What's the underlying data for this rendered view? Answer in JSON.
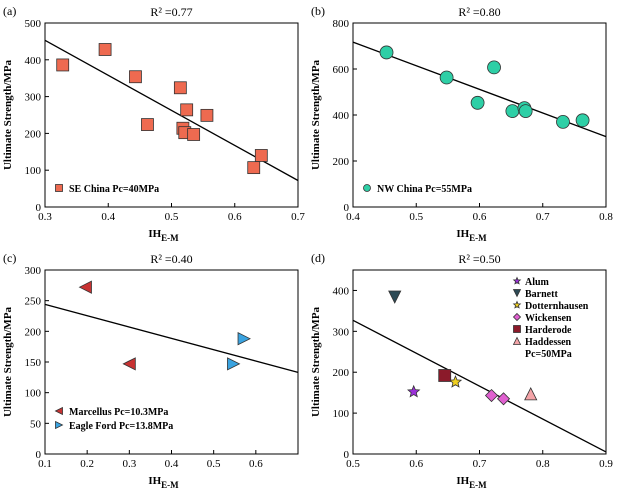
{
  "chart_data": [
    {
      "type": "scatter",
      "panel_label": "(a)",
      "annotation": "R² =0.77",
      "ylabel": "Ultimate Strength/MPa",
      "xlabel_main": "IH",
      "xlabel_sub": "E-M",
      "xlim": [
        0.3,
        0.7
      ],
      "ylim": [
        0,
        500
      ],
      "xticks": [
        "0.3",
        "0.4",
        "0.5",
        "0.6",
        "0.7"
      ],
      "yticks": [
        "0",
        "100",
        "200",
        "300",
        "400",
        "500"
      ],
      "legend_position": "bottom-left",
      "series": [
        {
          "name": "SE China Pc=40MPa",
          "marker": "square",
          "color": "#ee6a50",
          "x": [
            0.328,
            0.395,
            0.443,
            0.462,
            0.514,
            0.518,
            0.521,
            0.524,
            0.535,
            0.556,
            0.63,
            0.642
          ],
          "y": [
            386,
            428,
            354,
            224,
            324,
            214,
            202,
            264,
            197,
            249,
            107,
            140
          ]
        }
      ],
      "fit_line": {
        "x": [
          0.3,
          0.7
        ],
        "y": [
          453,
          72
        ]
      }
    },
    {
      "type": "scatter",
      "panel_label": "(b)",
      "annotation": "R² =0.80",
      "ylabel": "Ultimate Strength/MPa",
      "xlabel_main": "IH",
      "xlabel_sub": "E-M",
      "xlim": [
        0.4,
        0.8
      ],
      "ylim": [
        0,
        800
      ],
      "xticks": [
        "0.4",
        "0.5",
        "0.6",
        "0.7",
        "0.8"
      ],
      "yticks": [
        "0",
        "200",
        "400",
        "600",
        "800"
      ],
      "legend_position": "bottom-left",
      "series": [
        {
          "name": "NW China Pc=55MPa",
          "marker": "circle",
          "color": "#2ecfa6",
          "x": [
            0.453,
            0.548,
            0.597,
            0.623,
            0.652,
            0.671,
            0.673,
            0.732,
            0.763
          ],
          "y": [
            672,
            563,
            453,
            607,
            417,
            430,
            417,
            370,
            377
          ]
        }
      ],
      "fit_line": {
        "x": [
          0.4,
          0.8
        ],
        "y": [
          717,
          306
        ]
      }
    },
    {
      "type": "scatter",
      "panel_label": "(c)",
      "annotation": "R² =0.40",
      "ylabel": "Ultimate Strength/MPa",
      "xlabel_main": "IH",
      "xlabel_sub": "E-M",
      "xlim": [
        0.1,
        0.7
      ],
      "ylim": [
        0,
        300
      ],
      "xticks": [
        "0.1",
        "0.2",
        "0.3",
        "0.4",
        "0.5",
        "0.6"
      ],
      "yticks": [
        "0",
        "50",
        "100",
        "150",
        "200",
        "250",
        "300"
      ],
      "legend_position": "bottom-left",
      "series": [
        {
          "name": "Marcellus Pc=10.3MPa",
          "marker": "triangle-left",
          "color": "#c83232",
          "x": [
            0.196,
            0.3
          ],
          "y": [
            272,
            147
          ]
        },
        {
          "name": "Eagle Ford Pc=13.8MPa",
          "marker": "triangle-right",
          "color": "#3aa3e0",
          "x": [
            0.547,
            0.572
          ],
          "y": [
            147,
            188
          ]
        }
      ],
      "fit_line": {
        "x": [
          0.1,
          0.7
        ],
        "y": [
          244,
          133
        ]
      }
    },
    {
      "type": "scatter",
      "panel_label": "(d)",
      "annotation": "R² =0.50",
      "ylabel": "Ultimate Strength/MPa",
      "xlabel_main": "IH",
      "xlabel_sub": "E-M",
      "xlim": [
        0.5,
        0.9
      ],
      "ylim": [
        0,
        450
      ],
      "xticks": [
        "0.5",
        "0.6",
        "0.7",
        "0.8",
        "0.9"
      ],
      "yticks": [
        "0",
        "100",
        "200",
        "300",
        "400"
      ],
      "legend_position": "top-right",
      "legend_note": "Pc=50MPa",
      "series": [
        {
          "name": "Alum",
          "marker": "star",
          "color": "#9b30d9",
          "x": [
            0.596
          ],
          "y": [
            152
          ]
        },
        {
          "name": "Barnett",
          "marker": "triangle-down",
          "color": "#2d4a55",
          "x": [
            0.566
          ],
          "y": [
            384
          ]
        },
        {
          "name": "Dotternhausen",
          "marker": "star",
          "color": "#f0d020",
          "x": [
            0.662
          ],
          "y": [
            176
          ]
        },
        {
          "name": "Wickensen",
          "marker": "diamond",
          "color": "#e060d0",
          "x": [
            0.719,
            0.738
          ],
          "y": [
            143,
            135
          ]
        },
        {
          "name": "Harderode",
          "marker": "square",
          "color": "#8b1a2a",
          "x": [
            0.645
          ],
          "y": [
            192
          ]
        },
        {
          "name": "Haddessen",
          "marker": "triangle-up",
          "color": "#f4a4a8",
          "x": [
            0.781
          ],
          "y": [
            147
          ]
        }
      ],
      "fit_line": {
        "x": [
          0.5,
          0.9
        ],
        "y": [
          327,
          5
        ]
      }
    }
  ]
}
